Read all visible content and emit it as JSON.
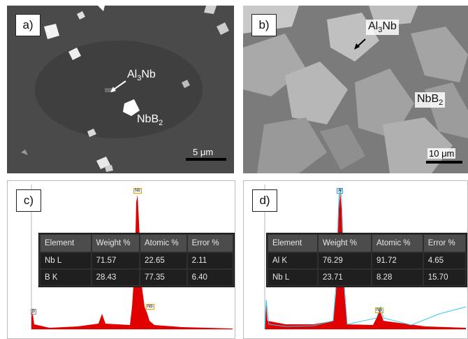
{
  "panel_a": {
    "tag": "a)",
    "labels": [
      "Al",
      "3",
      "Nb"
    ],
    "label_nbb2": [
      "NbB",
      "2"
    ],
    "scalebar": "5 μm"
  },
  "panel_b": {
    "tag": "b)",
    "label_al3nb": [
      "Al",
      "3",
      "Nb"
    ],
    "label_nbb2": [
      "NbB",
      "2"
    ],
    "scalebar": "10 μm"
  },
  "panel_c": {
    "tag": "c)",
    "table": {
      "headers": [
        "Element",
        "Weight %",
        "Atomic %",
        "Error %"
      ],
      "rows": [
        [
          "Nb L",
          "71.57",
          "22.65",
          "2.11"
        ],
        [
          "B  K",
          "28.43",
          "77.35",
          "6.40"
        ]
      ]
    },
    "peak_labels": [
      "Nb",
      "B",
      "Nb"
    ]
  },
  "panel_d": {
    "tag": "d)",
    "table": {
      "headers": [
        "Element",
        "Weight %",
        "Atomic %",
        "Error %"
      ],
      "rows": [
        [
          "Al K",
          "76.29",
          "91.72",
          "4.65"
        ],
        [
          "Nb L",
          "23.71",
          "8.28",
          "15.70"
        ]
      ]
    },
    "peak_labels": [
      "Al",
      "Nb"
    ]
  },
  "colors": {
    "spectrum_red": "#e00000",
    "fit_cyan": "#33ccee"
  }
}
